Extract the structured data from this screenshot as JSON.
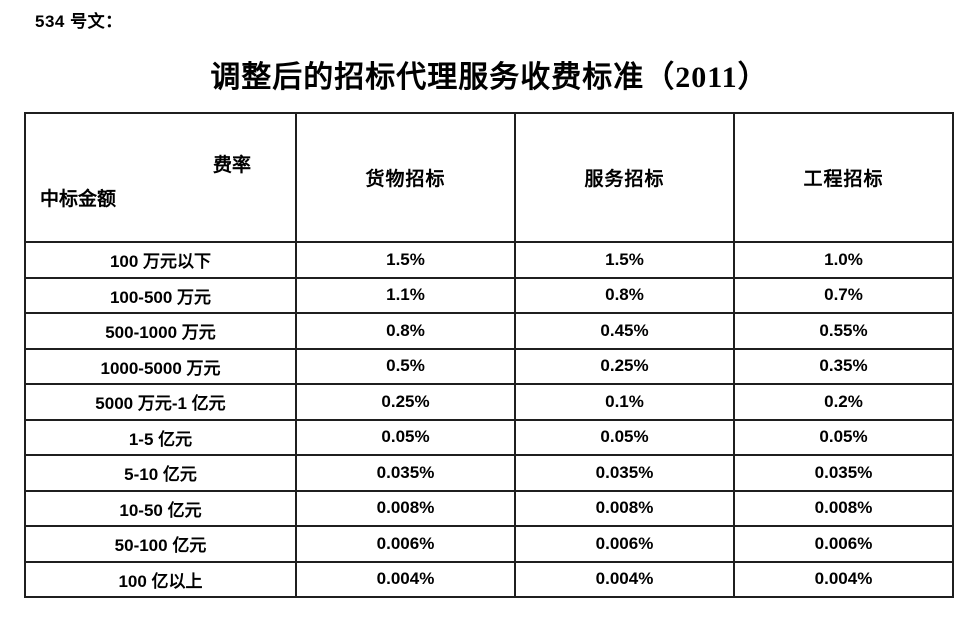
{
  "doc_number": "534 号文：",
  "title": "调整后的招标代理服务收费标准（2011）",
  "table": {
    "corner": {
      "rate_label": "费率",
      "amount_label": "中标金额"
    },
    "columns": [
      "货物招标",
      "服务招标",
      "工程招标"
    ],
    "rows": [
      {
        "amount": "100 万元以下",
        "values": [
          "1.5%",
          "1.5%",
          "1.0%"
        ]
      },
      {
        "amount": "100-500 万元",
        "values": [
          "1.1%",
          "0.8%",
          "0.7%"
        ]
      },
      {
        "amount": "500-1000 万元",
        "values": [
          "0.8%",
          "0.45%",
          "0.55%"
        ]
      },
      {
        "amount": "1000-5000 万元",
        "values": [
          "0.5%",
          "0.25%",
          "0.35%"
        ]
      },
      {
        "amount": "5000 万元-1 亿元",
        "values": [
          "0.25%",
          "0.1%",
          "0.2%"
        ]
      },
      {
        "amount": "1-5 亿元",
        "values": [
          "0.05%",
          "0.05%",
          "0.05%"
        ]
      },
      {
        "amount": "5-10 亿元",
        "values": [
          "0.035%",
          "0.035%",
          "0.035%"
        ]
      },
      {
        "amount": "10-50 亿元",
        "values": [
          "0.008%",
          "0.008%",
          "0.008%"
        ]
      },
      {
        "amount": "50-100 亿元",
        "values": [
          "0.006%",
          "0.006%",
          "0.006%"
        ]
      },
      {
        "amount": "100 亿以上",
        "values": [
          "0.004%",
          "0.004%",
          "0.004%"
        ]
      }
    ]
  },
  "colors": {
    "text": "#000000",
    "border": "#1f1f1f",
    "background": "#ffffff"
  }
}
